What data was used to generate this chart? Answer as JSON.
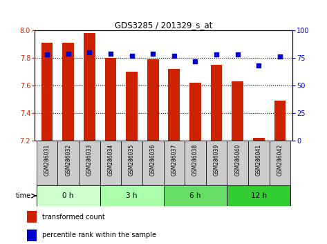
{
  "title": "GDS3285 / 201329_s_at",
  "samples": [
    "GSM286031",
    "GSM286032",
    "GSM286033",
    "GSM286034",
    "GSM286035",
    "GSM286036",
    "GSM286037",
    "GSM286038",
    "GSM286039",
    "GSM286040",
    "GSM286041",
    "GSM286042"
  ],
  "bar_values": [
    7.91,
    7.91,
    7.98,
    7.8,
    7.7,
    7.79,
    7.72,
    7.62,
    7.75,
    7.63,
    7.22,
    7.49
  ],
  "percentile_values": [
    78,
    79,
    80,
    79,
    77,
    79,
    77,
    72,
    78,
    78,
    68,
    76
  ],
  "ylim_left": [
    7.2,
    8.0
  ],
  "ylim_right": [
    0,
    100
  ],
  "yticks_left": [
    7.2,
    7.4,
    7.6,
    7.8,
    8.0
  ],
  "yticks_right": [
    0,
    25,
    50,
    75,
    100
  ],
  "bar_color": "#cc2200",
  "dot_color": "#0000cc",
  "bar_bottom": 7.2,
  "group_labels": [
    "0 h",
    "3 h",
    "6 h",
    "12 h"
  ],
  "group_starts": [
    0,
    3,
    6,
    9
  ],
  "group_ends": [
    3,
    6,
    9,
    12
  ],
  "group_colors": [
    "#ccffcc",
    "#aaffaa",
    "#66dd66",
    "#33cc33"
  ],
  "time_label": "time",
  "legend_bar_label": "transformed count",
  "legend_dot_label": "percentile rank within the sample",
  "tick_color_left": "#cc2200",
  "tick_color_right": "#0000cc",
  "sample_bg_color": "#cccccc"
}
